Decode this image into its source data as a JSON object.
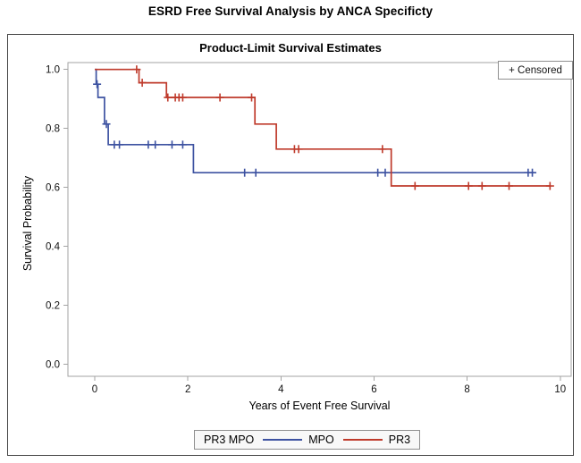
{
  "figure_title": "ESRD Free Survival Analysis by ANCA Specificty",
  "chart_data": {
    "type": "line",
    "subtype": "kaplan-meier-step-survival",
    "title": "Product-Limit Survival Estimates",
    "xlabel": "Years of Event Free Survival",
    "ylabel": "Survival Probability",
    "censored_label": "+ Censored",
    "xaxis": {
      "ticks": [
        0,
        2,
        4,
        6,
        8,
        10
      ],
      "range": [
        0,
        10
      ],
      "grid": false
    },
    "yaxis": {
      "ticks": [
        0.0,
        0.2,
        0.4,
        0.6,
        0.8,
        1.0
      ],
      "range": [
        0.0,
        1.0
      ],
      "grid": false
    },
    "legend": {
      "position": "bottom-center",
      "title": "PR3 MPO",
      "entries": [
        {
          "label": "MPO",
          "color": "#3d52a1"
        },
        {
          "label": "PR3",
          "color": "#bf3a2b"
        }
      ]
    },
    "series": [
      {
        "name": "MPO",
        "color": "#3d52a1",
        "steps": [
          [
            0.0,
            1.0
          ],
          [
            0.03,
            0.95
          ],
          [
            0.07,
            0.905
          ],
          [
            0.21,
            0.815
          ],
          [
            0.29,
            0.745
          ],
          [
            2.12,
            0.65
          ],
          [
            9.45,
            0.65
          ]
        ],
        "censored": [
          [
            0.05,
            0.95
          ],
          [
            0.25,
            0.815
          ],
          [
            0.42,
            0.745
          ],
          [
            0.53,
            0.745
          ],
          [
            1.15,
            0.745
          ],
          [
            1.3,
            0.745
          ],
          [
            1.66,
            0.745
          ],
          [
            1.89,
            0.745
          ],
          [
            3.22,
            0.65
          ],
          [
            3.46,
            0.65
          ],
          [
            6.08,
            0.65
          ],
          [
            6.24,
            0.65
          ],
          [
            9.31,
            0.65
          ],
          [
            9.4,
            0.65
          ]
        ]
      },
      {
        "name": "PR3",
        "color": "#bf3a2b",
        "steps": [
          [
            0.0,
            1.0
          ],
          [
            0.95,
            0.955
          ],
          [
            1.54,
            0.905
          ],
          [
            3.44,
            0.815
          ],
          [
            3.9,
            0.73
          ],
          [
            6.37,
            0.605
          ],
          [
            9.78,
            0.605
          ]
        ],
        "censored": [
          [
            0.9,
            1.0
          ],
          [
            1.02,
            0.955
          ],
          [
            1.57,
            0.905
          ],
          [
            1.73,
            0.905
          ],
          [
            1.81,
            0.905
          ],
          [
            1.89,
            0.905
          ],
          [
            2.69,
            0.905
          ],
          [
            3.37,
            0.905
          ],
          [
            4.29,
            0.73
          ],
          [
            4.38,
            0.73
          ],
          [
            6.18,
            0.73
          ],
          [
            6.88,
            0.605
          ],
          [
            8.03,
            0.605
          ],
          [
            8.32,
            0.605
          ],
          [
            8.9,
            0.605
          ],
          [
            9.78,
            0.605
          ]
        ]
      }
    ],
    "style": {
      "wall_color": "#a3a3a3",
      "tick_color": "#a3a3a3",
      "tick_label_color": "#111111",
      "outer_border_color": "#454545"
    }
  }
}
